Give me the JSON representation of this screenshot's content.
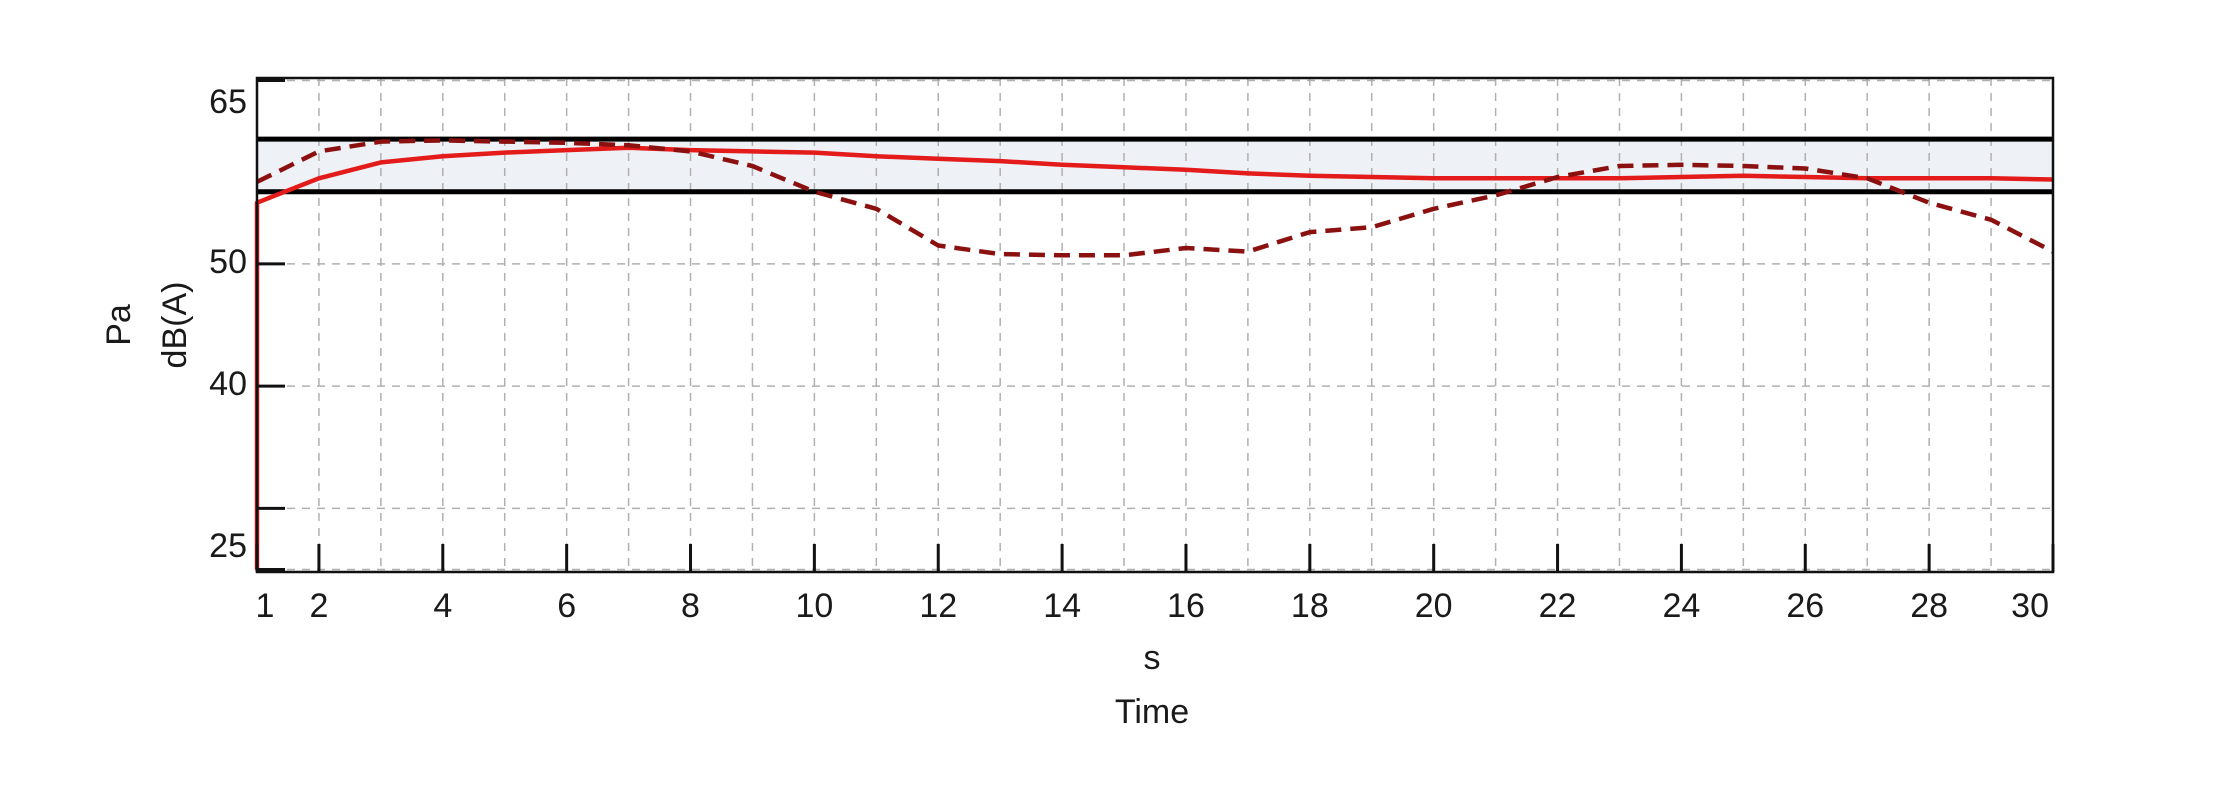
{
  "chart_data": {
    "type": "line",
    "x_label": "Time",
    "x_unit": "s",
    "y_label": "dB(A)",
    "y_unit": "Pa",
    "xlim": [
      1,
      30
    ],
    "ylim": [
      24.8,
      65.2
    ],
    "xticks": [
      1,
      2,
      4,
      6,
      8,
      10,
      12,
      14,
      16,
      18,
      20,
      22,
      24,
      26,
      28,
      30
    ],
    "x_minor_ticks": [
      3,
      5,
      7,
      9,
      11,
      13,
      15,
      17,
      19,
      21,
      23,
      25,
      27,
      29
    ],
    "yticks": [
      25,
      40,
      50,
      65
    ],
    "y_minor_ticks": [
      30
    ],
    "grid": true,
    "limits": {
      "lower": 55.9,
      "upper": 60.2,
      "color": "#000000",
      "fill": "#eef1f5"
    },
    "series": [
      {
        "color": "#e31b1b",
        "style": "solid",
        "x": [
          1,
          1,
          2,
          3,
          4,
          5,
          6,
          7,
          8,
          9,
          10,
          11,
          12,
          13,
          14,
          15,
          16,
          17,
          18,
          19,
          20,
          21,
          22,
          23,
          24,
          25,
          26,
          27,
          28,
          29,
          30
        ],
        "values": [
          25,
          55.0,
          57.0,
          58.3,
          58.8,
          59.1,
          59.3,
          59.5,
          59.3,
          59.2,
          59.1,
          58.8,
          58.6,
          58.4,
          58.1,
          57.9,
          57.7,
          57.4,
          57.2,
          57.1,
          57.0,
          57.0,
          57.0,
          57.0,
          57.1,
          57.2,
          57.1,
          57.0,
          57.0,
          57.0,
          56.9
        ]
      },
      {
        "color": "#8b1010",
        "style": "dashed",
        "x": [
          1,
          2,
          3,
          4,
          5,
          6,
          7,
          8,
          9,
          10,
          11,
          12,
          13,
          14,
          15,
          16,
          17,
          18,
          19,
          20,
          21,
          22,
          23,
          24,
          25,
          26,
          27,
          28,
          29,
          30
        ],
        "values": [
          56.7,
          59.2,
          60.0,
          60.1,
          60.0,
          59.9,
          59.7,
          59.2,
          58.0,
          55.9,
          54.5,
          51.5,
          50.8,
          50.7,
          50.7,
          51.3,
          51.0,
          52.6,
          53.0,
          54.5,
          55.6,
          57.1,
          58.0,
          58.1,
          58.0,
          57.8,
          57.0,
          55.0,
          53.6,
          51.0
        ]
      }
    ]
  }
}
